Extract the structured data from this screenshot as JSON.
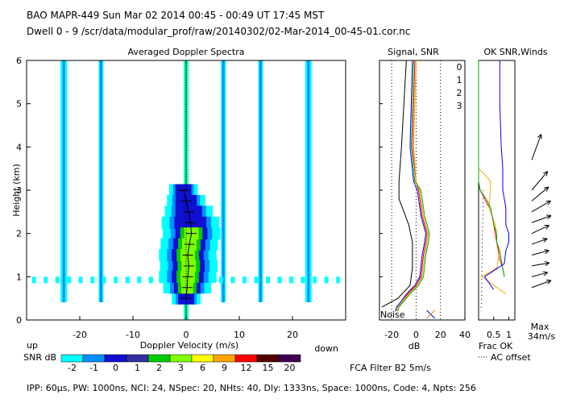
{
  "header": {
    "line1": "BAO  MAPR-449  Sun Mar 02 2014 00:45 - 00:49 UT 17:45 MST",
    "line2": "Dwell  0 -  9   /scr/data/modular_prof/raw/20140302/02-Mar-2014_00-45-01.cor.nc"
  },
  "footer": {
    "params": "IPP:  60μs,  PW: 1000ns,  NCI:  24,  NSpec: 20,  NHts: 40,  Dly: 1333ns,  Space: 1000ns,  Code: 4,  Npts: 256",
    "fca": "FCA Filter B2   5m/s"
  },
  "chart_data": [
    {
      "type": "heatmap",
      "title": "Averaged Doppler Spectra",
      "xlabel": "Doppler Velocity (m/s)",
      "ylabel": "Height (km)",
      "xlim": [
        -30,
        30
      ],
      "ylim": [
        0,
        6
      ],
      "xticks": [
        -20,
        -10,
        0,
        10,
        20
      ],
      "yticks": [
        0,
        1,
        2,
        3,
        4,
        5,
        6
      ],
      "label_up": "up",
      "label_down": "down",
      "colorbar": {
        "label": "SNR dB",
        "levels": [
          "-2",
          "-1",
          "0",
          "1",
          "2",
          "3",
          "6",
          "9",
          "12",
          "15",
          "20"
        ],
        "colors": [
          "#00ffff",
          "#0090ff",
          "#1010d0",
          "#3030a0",
          "#00cc00",
          "#80ff00",
          "#ffff00",
          "#ffa500",
          "#ff0000",
          "#500000",
          "#400050"
        ]
      },
      "clutter_lines_ms": [
        -23,
        -16,
        -1,
        0,
        7,
        14,
        23
      ],
      "peak_velocity_profile": {
        "height_km": [
          0.5,
          0.75,
          1.0,
          1.25,
          1.5,
          1.75,
          2.0,
          2.25,
          2.5,
          2.75,
          3.0
        ],
        "velocity_ms": [
          0,
          0.2,
          0.3,
          0.5,
          0.3,
          0.6,
          1.0,
          0.8,
          0.5,
          0,
          -0.5
        ],
        "width_ms": [
          1.5,
          2.5,
          3,
          3,
          3,
          3,
          3,
          3,
          2.5,
          2,
          1.5
        ]
      }
    },
    {
      "type": "line",
      "title": "Signal, SNR",
      "xlabel": "dB",
      "xlim": [
        -30,
        40
      ],
      "ylim": [
        0,
        6
      ],
      "xticks": [
        -20,
        0,
        20,
        40
      ],
      "noise_label": "Noise",
      "series": [
        {
          "name": "0",
          "color": "#ff0000",
          "x": [
            -1,
            -2,
            -3,
            0,
            2,
            3,
            4,
            5,
            7,
            9,
            8,
            6,
            4,
            0,
            -7,
            -12,
            -15,
            -16
          ],
          "y": [
            6,
            5,
            4,
            3.2,
            3,
            2.8,
            2.6,
            2.4,
            2.2,
            2.0,
            1.8,
            1.5,
            1.0,
            0.8,
            0.6,
            0.4,
            0.3,
            0.2
          ]
        },
        {
          "name": "1",
          "color": "#ffa500",
          "x": [
            0,
            -1,
            -2,
            0,
            3,
            4,
            5,
            6,
            8,
            10,
            9,
            7,
            5,
            1,
            -6,
            -12,
            -15,
            -16
          ],
          "y": [
            6,
            5,
            4,
            3.2,
            3,
            2.8,
            2.6,
            2.4,
            2.2,
            2.0,
            1.8,
            1.5,
            1.0,
            0.8,
            0.6,
            0.4,
            0.3,
            0.2
          ]
        },
        {
          "name": "2",
          "color": "#00b000",
          "x": [
            -2,
            -3,
            -4,
            -1,
            4,
            5,
            6,
            7,
            9,
            11,
            10,
            8,
            6,
            2,
            -5,
            -11,
            -14,
            -15
          ],
          "y": [
            6,
            5,
            4,
            3.2,
            3,
            2.8,
            2.6,
            2.4,
            2.2,
            2.0,
            1.8,
            1.5,
            1.0,
            0.8,
            0.6,
            0.4,
            0.3,
            0.2
          ]
        },
        {
          "name": "3",
          "color": "#0000ff",
          "x": [
            -3,
            -4,
            -5,
            -2,
            1,
            2,
            3,
            4,
            6,
            8,
            7,
            5,
            3,
            -1,
            -8,
            -13,
            -16,
            -17
          ],
          "y": [
            6,
            5,
            4,
            3.2,
            3,
            2.8,
            2.6,
            2.4,
            2.2,
            2.0,
            1.8,
            1.5,
            1.0,
            0.8,
            0.6,
            0.4,
            0.3,
            0.2
          ]
        }
      ],
      "noise": {
        "x": [
          -8,
          -10,
          -12,
          -14,
          -14,
          -10,
          -6,
          -3,
          -3,
          -5,
          -15,
          -28
        ],
        "y": [
          6,
          5,
          4,
          3.2,
          2.8,
          2.5,
          2.2,
          1.8,
          1.2,
          0.8,
          0.5,
          0.3
        ]
      }
    },
    {
      "type": "line",
      "title": "OK SNR,Winds",
      "xlabel_line1": "Frac OK",
      "xlabel_line2": "AC offset",
      "xlim": [
        0,
        1.2
      ],
      "ylim": [
        0,
        6
      ],
      "xtick_labels": [
        "0.5",
        "1"
      ],
      "xticks": [
        0.5,
        1.0
      ],
      "max_label": "Max",
      "max_value": "34m/s",
      "series": [
        {
          "name": "0",
          "color": "#ff0000",
          "x": [
            0,
            0,
            0.05,
            0.2,
            0.35,
            0.45,
            0.5,
            0.55,
            0.6,
            0.65,
            0.7,
            0.8,
            0.85
          ],
          "y": [
            6,
            3.2,
            3.0,
            2.8,
            2.6,
            2.4,
            2.2,
            2.0,
            1.8,
            1.6,
            1.4,
            1.2,
            1.0
          ]
        },
        {
          "name": "1",
          "color": "#ffa500",
          "x": [
            0,
            0,
            0.15,
            0.4,
            0.35,
            0.45,
            0.55,
            0.6,
            0.6,
            0.7,
            0.6,
            0.1,
            0.9
          ],
          "y": [
            6,
            3.5,
            3.4,
            3.2,
            2.6,
            2.4,
            2.2,
            2.0,
            1.8,
            1.6,
            1.2,
            1.0,
            0.6
          ]
        },
        {
          "name": "2",
          "color": "#00b000",
          "x": [
            0,
            0,
            0.05,
            0.25,
            0.4,
            0.45,
            0.5,
            0.6,
            0.6,
            0.7,
            0.75,
            0.8,
            0.85
          ],
          "y": [
            6,
            3.2,
            3.0,
            2.8,
            2.6,
            2.4,
            2.2,
            2.0,
            1.8,
            1.6,
            1.4,
            1.2,
            1.0
          ]
        },
        {
          "name": "3",
          "color": "#0000ff",
          "x": [
            0.7,
            0.7,
            0.75,
            0.8,
            0.8,
            0.9,
            0.9,
            1.0,
            1.0,
            0.9,
            0.85,
            0.2,
            0.5
          ],
          "y": [
            6,
            5,
            4,
            3.5,
            3.0,
            2.6,
            2.2,
            2.0,
            1.8,
            1.6,
            1.3,
            1.0,
            0.7
          ]
        }
      ],
      "ac_offset": {
        "x": [
          0.15,
          0.15,
          0.12,
          0.12,
          0.1,
          0.1,
          0.08
        ],
        "y": [
          3.0,
          2.5,
          2.0,
          1.5,
          1.0,
          0.5,
          0.2
        ]
      }
    }
  ],
  "winds": [
    {
      "height_km": 3.7,
      "dir_deg": 200,
      "speed_ms": 20
    },
    {
      "height_km": 3.0,
      "dir_deg": 220,
      "speed_ms": 18
    },
    {
      "height_km": 2.75,
      "dir_deg": 230,
      "speed_ms": 16
    },
    {
      "height_km": 2.5,
      "dir_deg": 240,
      "speed_ms": 16
    },
    {
      "height_km": 2.25,
      "dir_deg": 250,
      "speed_ms": 15
    },
    {
      "height_km": 2.0,
      "dir_deg": 245,
      "speed_ms": 14
    },
    {
      "height_km": 1.75,
      "dir_deg": 250,
      "speed_ms": 12
    },
    {
      "height_km": 1.5,
      "dir_deg": 255,
      "speed_ms": 13
    },
    {
      "height_km": 1.25,
      "dir_deg": 260,
      "speed_ms": 13
    },
    {
      "height_km": 1.0,
      "dir_deg": 255,
      "speed_ms": 12
    },
    {
      "height_km": 0.75,
      "dir_deg": 250,
      "speed_ms": 15
    }
  ]
}
